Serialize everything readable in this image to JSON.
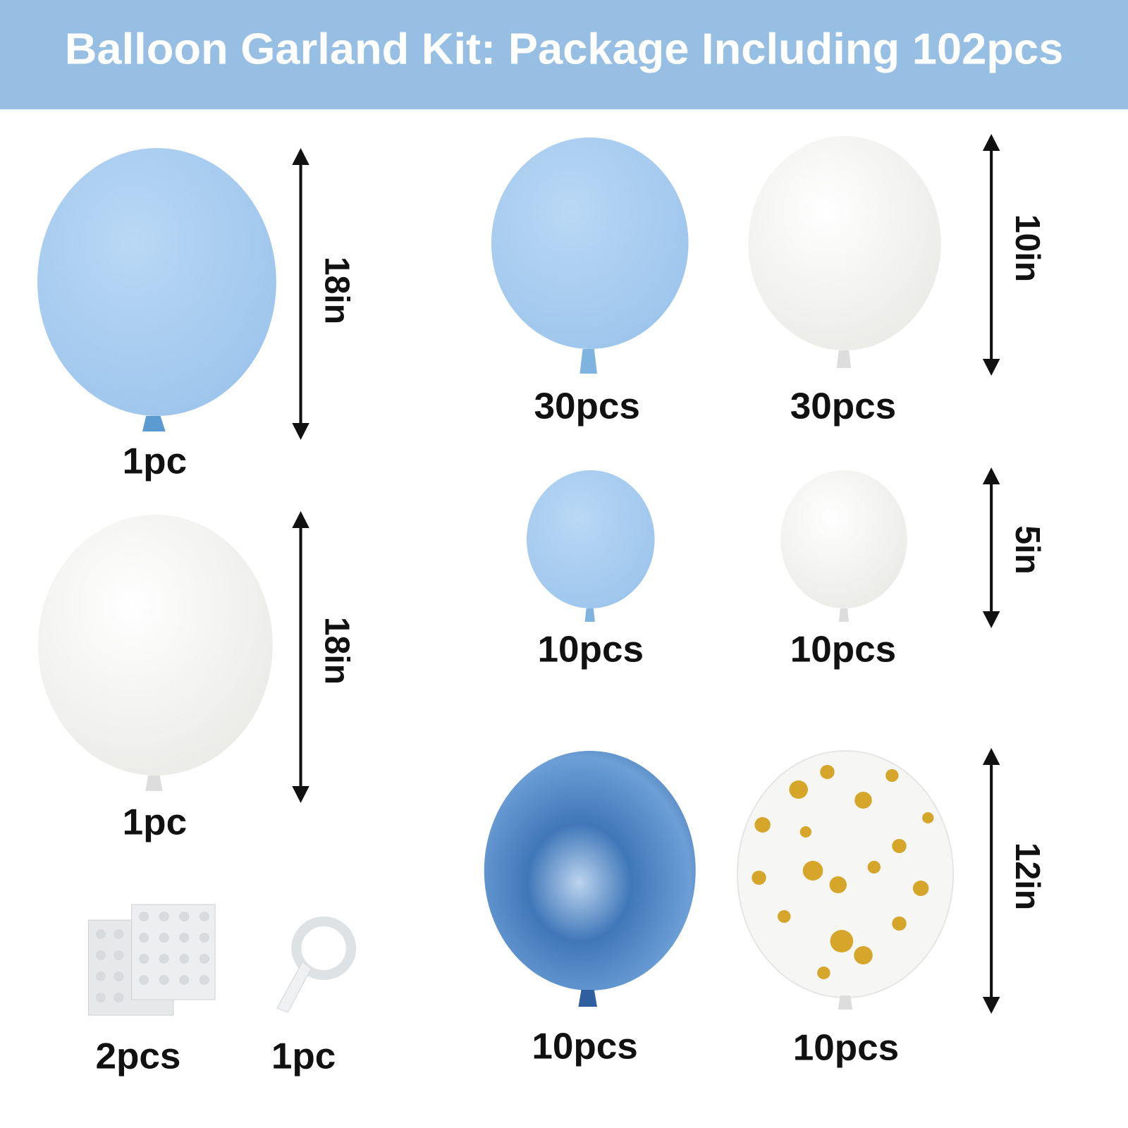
{
  "header": {
    "title": "Balloon Garland Kit: Package Including 102pcs"
  },
  "items": [
    {
      "count": "1pc"
    },
    {
      "count": "1pc"
    },
    {
      "count": "30pcs"
    },
    {
      "count": "30pcs"
    },
    {
      "count": "10pcs"
    },
    {
      "count": "10pcs"
    },
    {
      "count": "10pcs"
    },
    {
      "count": "10pcs"
    },
    {
      "count": "2pcs"
    },
    {
      "count": "1pc"
    }
  ],
  "dimensions": [
    {
      "label": "18in"
    },
    {
      "label": "18in"
    },
    {
      "label": "10in"
    },
    {
      "label": "5in"
    },
    {
      "label": "12in"
    }
  ]
}
